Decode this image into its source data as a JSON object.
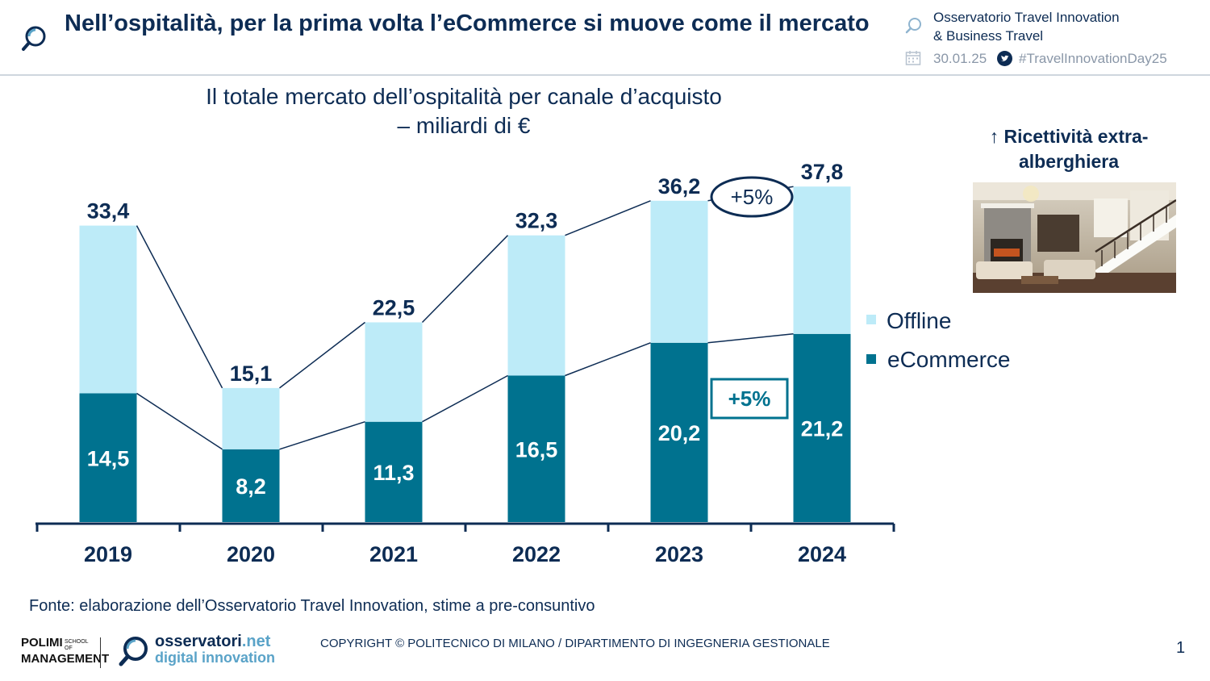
{
  "header": {
    "title": "Nell’ospitalità, per la prima volta l’eCommerce si muove come il mercato",
    "observatory_line1": "Osservatorio Travel Innovation",
    "observatory_line2": "& Business Travel",
    "date": "30.01.25",
    "hashtag": "#TravelInnovationDay25"
  },
  "colors": {
    "navy": "#0d2c54",
    "ecommerce": "#00728f",
    "offline": "#bdebf8"
  },
  "chart_data": {
    "type": "bar",
    "stacked": true,
    "title_line1": "Il totale mercato dell’ospitalità per canale d’acquisto",
    "title_line2": "– miliardi di €",
    "categories": [
      "2019",
      "2020",
      "2021",
      "2022",
      "2023",
      "2024"
    ],
    "series": [
      {
        "name": "eCommerce",
        "values": [
          14.5,
          8.2,
          11.3,
          16.5,
          20.2,
          21.2
        ],
        "labels": [
          "14,5",
          "8,2",
          "11,3",
          "16,5",
          "20,2",
          "21,2"
        ]
      },
      {
        "name": "Offline",
        "values": [
          18.9,
          6.9,
          11.2,
          15.8,
          16.0,
          16.6
        ]
      }
    ],
    "totals": [
      33.4,
      15.1,
      22.5,
      32.3,
      36.2,
      37.8
    ],
    "total_labels": [
      "33,4",
      "15,1",
      "22,5",
      "32,3",
      "36,2",
      "37,8"
    ],
    "legend": [
      "Offline",
      "eCommerce"
    ],
    "legend_position": "right",
    "annotations": {
      "total_growth": "+5%",
      "ecommerce_growth": "+5%"
    },
    "ylim": [
      0,
      40
    ],
    "grid": false
  },
  "side_panel": {
    "title": "↑ Ricettività extra-alberghiera"
  },
  "footer": {
    "source": "Fonte: elaborazione dell’Osservatorio Travel Innovation, stime a pre-consuntivo",
    "polimi_line1": "POLIMI",
    "polimi_line2": "MANAGEMENT",
    "polimi_small": "SCHOOL OF",
    "osservatori_name": "osservatori",
    "osservatori_tld": ".net",
    "osservatori_sub": "digital innovation",
    "copyright": "COPYRIGHT © POLITECNICO DI MILANO / DIPARTIMENTO DI INGEGNERIA GESTIONALE",
    "page": "1"
  }
}
